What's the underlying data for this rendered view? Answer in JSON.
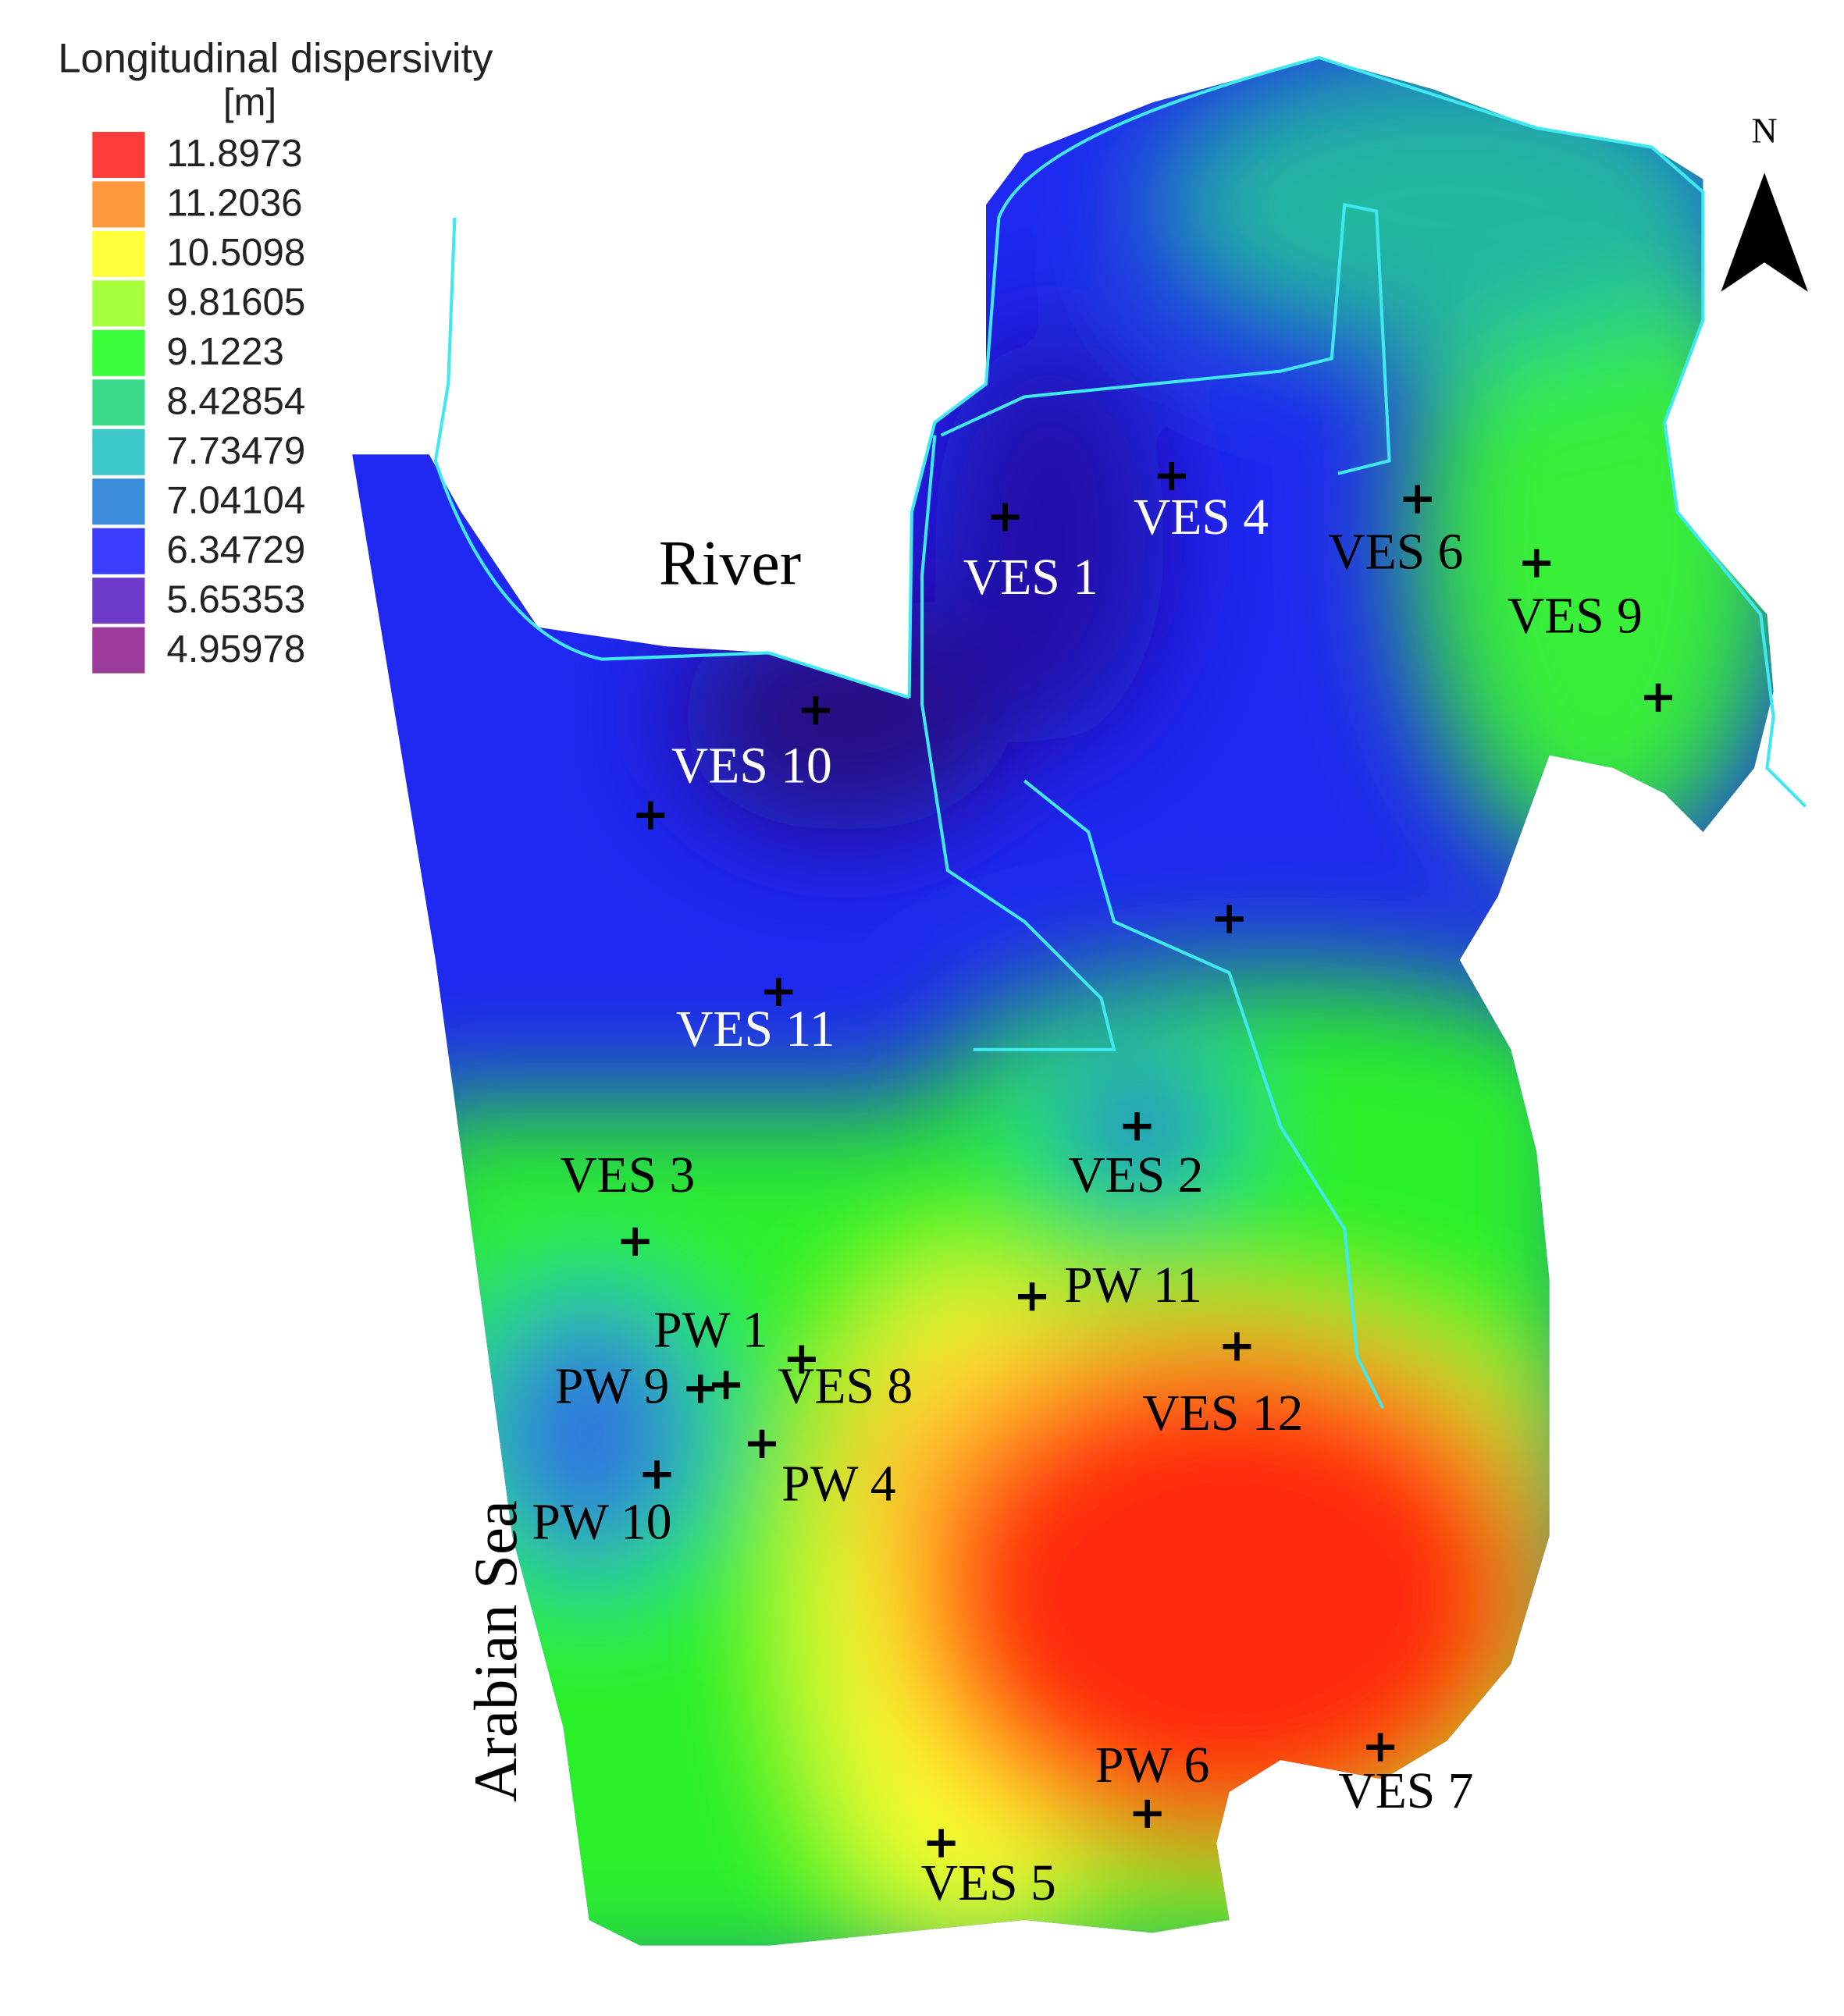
{
  "legend": {
    "title": "Longitudinal dispersivity",
    "unit": "[m]",
    "items": [
      {
        "value": 11.8973,
        "color": "#ff3c3c"
      },
      {
        "value": 11.2036,
        "color": "#ff9a3c"
      },
      {
        "value": 10.5098,
        "color": "#ffff3c"
      },
      {
        "value": 9.81605,
        "color": "#a8ff3c"
      },
      {
        "value": 9.1223,
        "color": "#3cff3c"
      },
      {
        "value": 8.42854,
        "color": "#3cdc8c"
      },
      {
        "value": 7.73479,
        "color": "#3cc8c8"
      },
      {
        "value": 7.04104,
        "color": "#3c8cdc"
      },
      {
        "value": 6.34729,
        "color": "#3c3cff"
      },
      {
        "value": 5.65353,
        "color": "#6e3cc8"
      },
      {
        "value": 4.95978,
        "color": "#9b3c9b"
      }
    ]
  },
  "map": {
    "north": "N",
    "river": "River",
    "sea": "Arabian Sea",
    "points": [
      "VES 1",
      "VES 4",
      "VES 6",
      "VES 9",
      "VES 10",
      "VES 11",
      "VES 2",
      "VES 3",
      "PW 11",
      "PW 1",
      "PW 9",
      "VES 8",
      "VES 12",
      "PW 4",
      "PW 10",
      "PW 6",
      "VES 7",
      "VES 5"
    ]
  }
}
